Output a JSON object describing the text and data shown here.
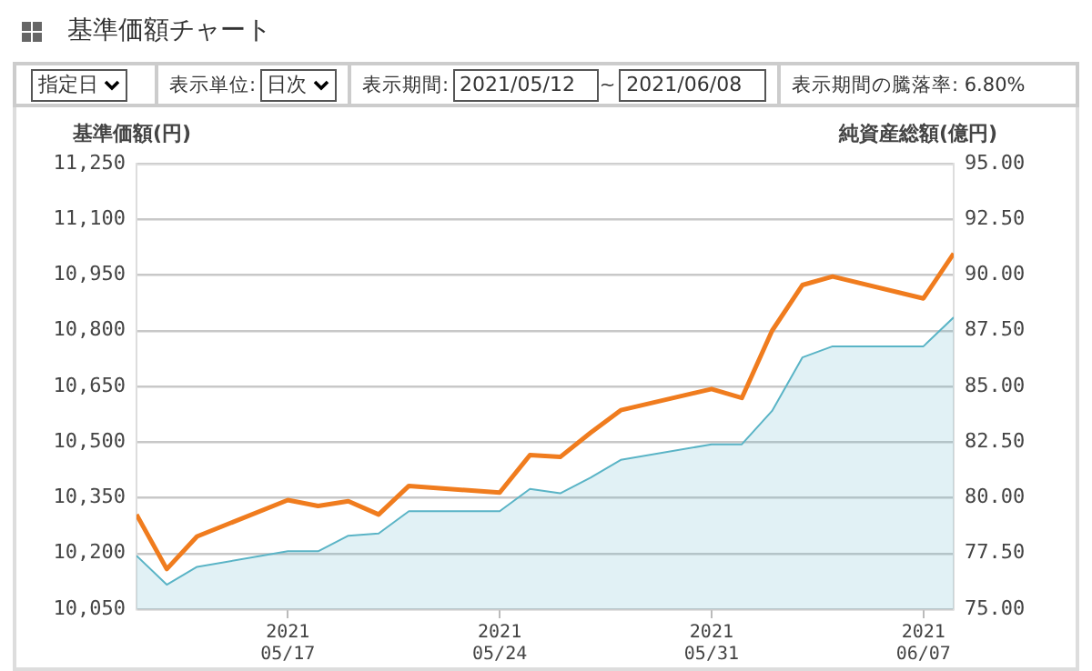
{
  "chart_data": {
    "type": "line",
    "title": "基準価額チャート",
    "ylabel": "基準価額(円)",
    "y2label": "純資産総額(億円)",
    "annotations": [
      "指定日",
      "表示単位:",
      "日次",
      "表示期間:",
      "2021/05/12",
      "~",
      "2021/06/08",
      "表示期間の騰落率: 6.80%"
    ],
    "x": [
      "2021-05-12",
      "2021-05-13",
      "2021-05-14",
      "2021-05-17",
      "2021-05-18",
      "2021-05-19",
      "2021-05-20",
      "2021-05-21",
      "2021-05-24",
      "2021-05-25",
      "2021-05-26",
      "2021-05-27",
      "2021-05-28",
      "2021-05-31",
      "2021-06-01",
      "2021-06-02",
      "2021-06-03",
      "2021-06-04",
      "2021-06-07",
      "2021-06-08"
    ],
    "series": [
      {
        "type": "area",
        "axis": "y2",
        "color": "#5ab4c6",
        "values": [
          77.4,
          76.1,
          76.9,
          77.6,
          77.6,
          78.3,
          78.4,
          79.4,
          79.4,
          80.4,
          80.2,
          80.9,
          81.7,
          82.4,
          82.4,
          83.9,
          86.3,
          86.8,
          86.8,
          88.1
        ]
      },
      {
        "type": "line",
        "color": "#f07c1e",
        "values": [
          10305,
          10158,
          10246,
          10344,
          10328,
          10341,
          10305,
          10382,
          10364,
          10465,
          10460,
          10525,
          10586,
          10643,
          10619,
          10800,
          10923,
          10946,
          10887,
          11008
        ]
      }
    ],
    "xlim": [
      "2021-05-12",
      "2021-06-08"
    ],
    "xticks": [
      {
        "value": "2021-05-17",
        "label": "2021\n05/17"
      },
      {
        "value": "2021-05-24",
        "label": "2021\n05/24"
      },
      {
        "value": "2021-05-31",
        "label": "2021\n05/31"
      },
      {
        "value": "2021-06-07",
        "label": "2021\n06/07"
      }
    ],
    "ylim": [
      10050,
      11250
    ],
    "yticks": [
      {
        "value": 10050,
        "label": "10,050"
      },
      {
        "value": 10200,
        "label": "10,200"
      },
      {
        "value": 10350,
        "label": "10,350"
      },
      {
        "value": 10500,
        "label": "10,500"
      },
      {
        "value": 10650,
        "label": "10,650"
      },
      {
        "value": 10800,
        "label": "10,800"
      },
      {
        "value": 10950,
        "label": "10,950"
      },
      {
        "value": 11100,
        "label": "11,100"
      },
      {
        "value": 11250,
        "label": "11,250"
      }
    ],
    "y2lim": [
      75,
      95
    ],
    "y2ticks": [
      {
        "value": 75,
        "label": "75.00"
      },
      {
        "value": 77.5,
        "label": "77.50"
      },
      {
        "value": 80,
        "label": "80.00"
      },
      {
        "value": 82.5,
        "label": "82.50"
      },
      {
        "value": 85,
        "label": "85.00"
      },
      {
        "value": 87.5,
        "label": "87.50"
      },
      {
        "value": 90,
        "label": "90.00"
      },
      {
        "value": 92.5,
        "label": "92.50"
      },
      {
        "value": 95,
        "label": "95.00"
      }
    ],
    "grid": "y",
    "legend": false,
    "marker": "none",
    "line_style": "solid"
  }
}
